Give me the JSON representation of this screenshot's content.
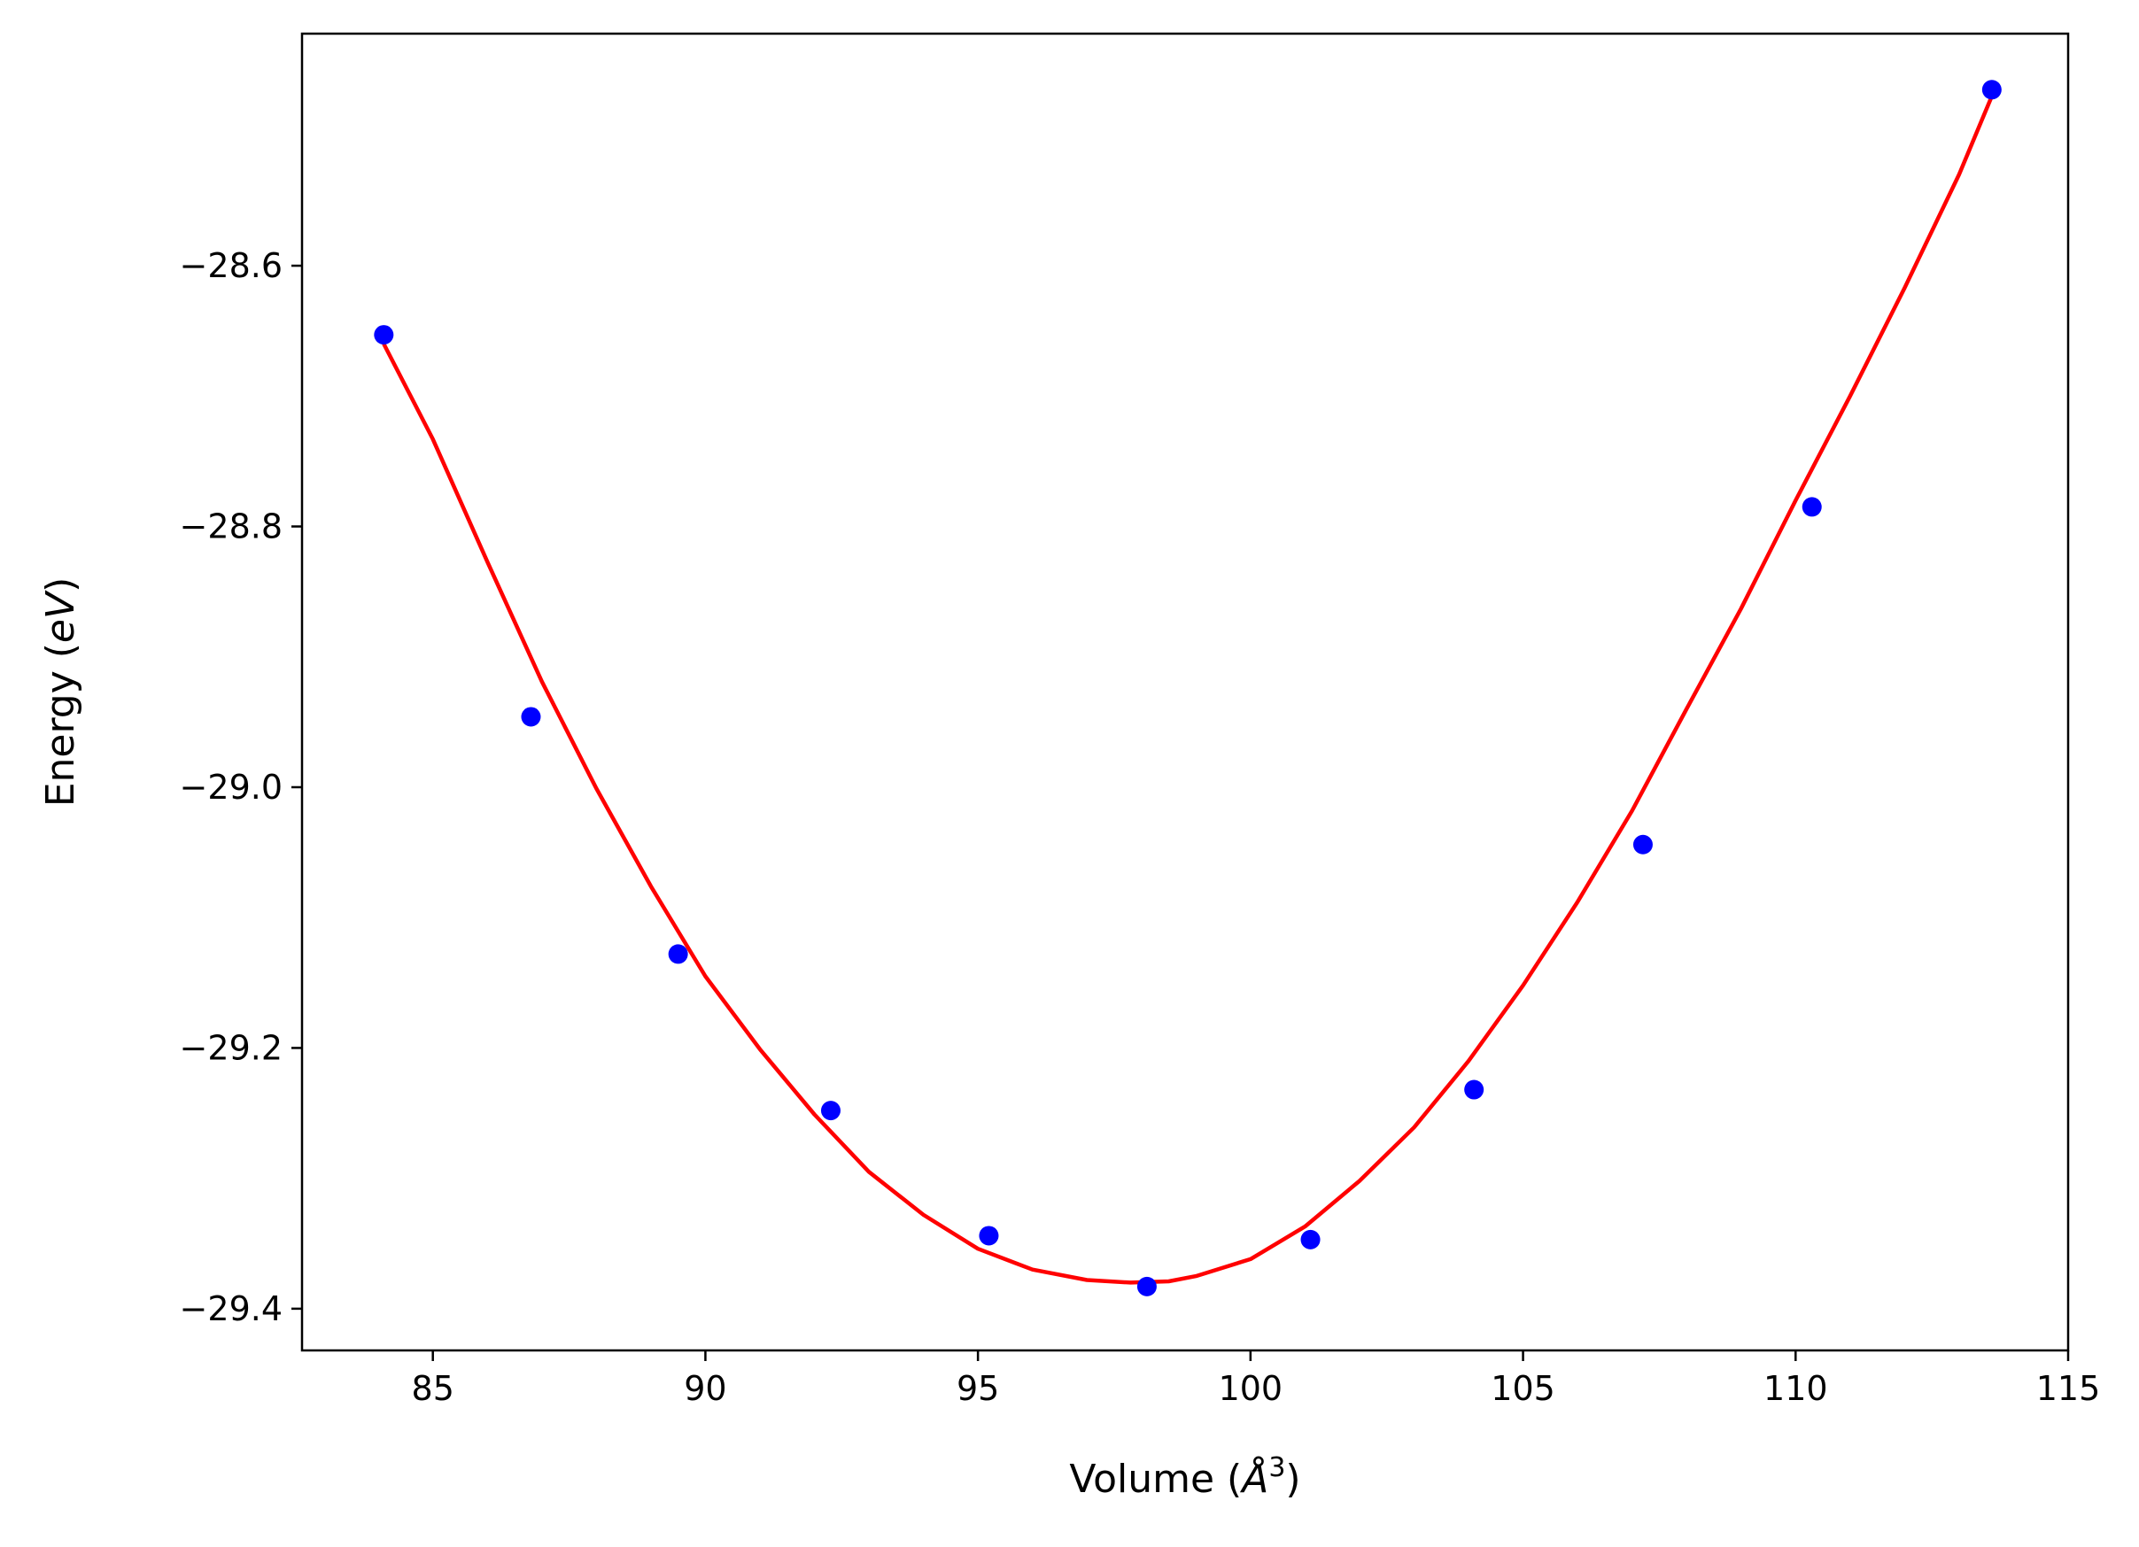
{
  "chart_data": {
    "type": "scatter",
    "xlabel_prefix": "Volume (",
    "xlabel_unit": "Å",
    "xlabel_exp": "3",
    "xlabel_suffix": ")",
    "ylabel_prefix": "Energy (",
    "ylabel_unit": "eV",
    "ylabel_suffix": ")",
    "xlim": [
      82.6,
      115.0
    ],
    "ylim": [
      -29.432,
      -28.422
    ],
    "xticks": [
      85,
      90,
      95,
      100,
      105,
      110,
      115
    ],
    "xtick_labels": [
      "85",
      "90",
      "95",
      "100",
      "105",
      "110",
      "115"
    ],
    "yticks": [
      -28.6,
      -28.8,
      -29.0,
      -29.2,
      -29.4
    ],
    "ytick_labels": [
      "−28.6",
      "−28.8",
      "−29.0",
      "−29.2",
      "−29.4"
    ],
    "grid": false,
    "series": [
      {
        "kind": "points",
        "color": "#0000ff",
        "x": [
          84.1,
          86.8,
          89.5,
          92.3,
          95.2,
          98.1,
          101.1,
          104.1,
          107.2,
          110.3,
          113.6
        ],
        "y": [
          -28.653,
          -28.946,
          -29.128,
          -29.248,
          -29.344,
          -29.383,
          -29.347,
          -29.232,
          -29.044,
          -28.785,
          -28.465
        ]
      },
      {
        "kind": "fit-line",
        "color": "#ff0000",
        "x": [
          84.1,
          85.0,
          86.0,
          87.0,
          88.0,
          89.0,
          90.0,
          91.0,
          92.0,
          93.0,
          94.0,
          95.0,
          96.0,
          97.0,
          97.8,
          98.5,
          99.0,
          100.0,
          101.0,
          102.0,
          103.0,
          104.0,
          105.0,
          106.0,
          107.0,
          108.0,
          109.0,
          110.0,
          111.0,
          112.0,
          113.0,
          113.6
        ],
        "y": [
          -28.66,
          -28.733,
          -28.827,
          -28.919,
          -29.001,
          -29.076,
          -29.145,
          -29.201,
          -29.251,
          -29.295,
          -29.328,
          -29.354,
          -29.37,
          -29.378,
          -29.38,
          -29.379,
          -29.375,
          -29.362,
          -29.337,
          -29.302,
          -29.261,
          -29.21,
          -29.152,
          -29.088,
          -29.018,
          -28.94,
          -28.863,
          -28.78,
          -28.7,
          -28.617,
          -28.53,
          -28.47
        ]
      }
    ]
  },
  "colors": {
    "points": "#0000ff",
    "fit_line": "#ff0000",
    "axes": "#000000"
  }
}
